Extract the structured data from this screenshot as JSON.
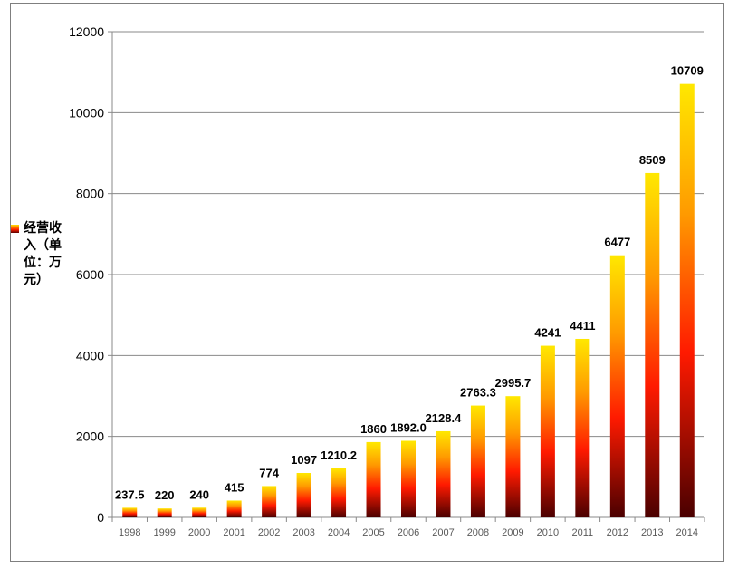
{
  "chart_data": {
    "type": "bar",
    "categories": [
      "1998",
      "1999",
      "2000",
      "2001",
      "2002",
      "2003",
      "2004",
      "2005",
      "2006",
      "2007",
      "2008",
      "2009",
      "2010",
      "2011",
      "2012",
      "2013",
      "2014"
    ],
    "values": [
      237.5,
      220,
      240,
      415,
      774,
      1097,
      1210.2,
      1860,
      1892.0,
      2128.4,
      2763.3,
      2995.7,
      4241,
      4411,
      6477,
      8509,
      10709
    ],
    "data_labels": [
      "237.5",
      "220",
      "240",
      "415",
      "774",
      "1097",
      "1210.2",
      "1860",
      "1892.0",
      "2128.4",
      "2763.3",
      "2995.7",
      "4241",
      "4411",
      "6477",
      "8509",
      "10709"
    ],
    "series": [
      {
        "name": "经营收入（单位：万元）"
      }
    ],
    "yticks": [
      "0",
      "2000",
      "4000",
      "6000",
      "8000",
      "10000",
      "12000"
    ],
    "ylim": [
      0,
      12000
    ],
    "grid": true,
    "legend_position": "left",
    "colors": {
      "bar_top": "#ffe800",
      "bar_mid": "#ff1a00",
      "bar_bottom": "#4a0000",
      "gridline": "#898989",
      "axis": "#898989"
    }
  }
}
